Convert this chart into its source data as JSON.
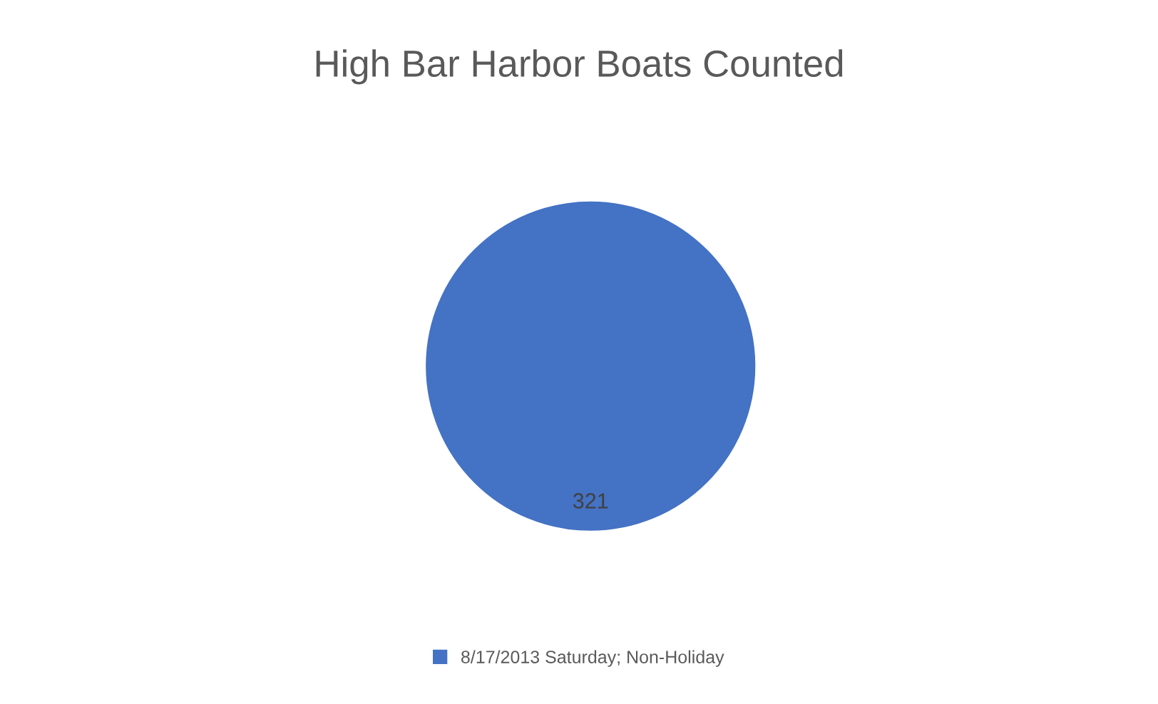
{
  "chart_data": {
    "type": "pie",
    "title": "High Bar Harbor Boats Counted",
    "categories": [
      "8/17/2013 Saturday; Non-Holiday"
    ],
    "values": [
      321
    ],
    "colors": [
      "#4472c4"
    ],
    "data_labels": true,
    "legend": "bottom"
  }
}
